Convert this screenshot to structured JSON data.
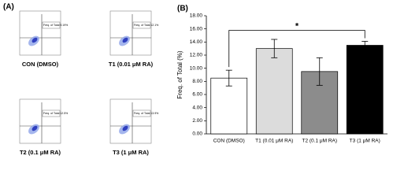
{
  "panel_a": {
    "label": "(A)",
    "plots": [
      {
        "label": "CON (DMSO)",
        "gate_text": "Freq. of Total 9.19%"
      },
      {
        "label": "T1 (0.01 μM RA)",
        "gate_text": "Freq. of Total 12.1%"
      },
      {
        "label": "T2 (0.1 μM RA)",
        "gate_text": "Freq. of Total 12.5%"
      },
      {
        "label": "T3 (1 μM RA)",
        "gate_text": "Freq. of Total 13.9%"
      }
    ]
  },
  "chart_data": {
    "type": "bar",
    "panel_label": "(B)",
    "ylabel": "Freq. of Total (%)",
    "annotation": "*",
    "categories": [
      "CON (DMSO)",
      "T1 (0.01 μM RA)",
      "T2 (0.1 μM RA)",
      "T3 (1 μM RA)"
    ],
    "values": [
      8.5,
      13.0,
      9.5,
      13.5
    ],
    "errors": [
      1.2,
      1.4,
      2.1,
      0.6
    ],
    "colors": [
      "#ffffff",
      "#dcdcdc",
      "#8c8c8c",
      "#000000"
    ],
    "ylim": [
      0,
      18
    ],
    "yticks": [
      {
        "value": 0,
        "label": "0.00"
      },
      {
        "value": 2,
        "label": "2.00"
      },
      {
        "value": 4,
        "label": "4.00"
      },
      {
        "value": 6,
        "label": "6.00"
      },
      {
        "value": 8,
        "label": "8.00"
      },
      {
        "value": 10,
        "label": "10.00"
      },
      {
        "value": 12,
        "label": "12.00"
      },
      {
        "value": 14,
        "label": "14.00"
      },
      {
        "value": 16,
        "label": "16.00"
      },
      {
        "value": 18,
        "label": "18.00"
      }
    ]
  }
}
